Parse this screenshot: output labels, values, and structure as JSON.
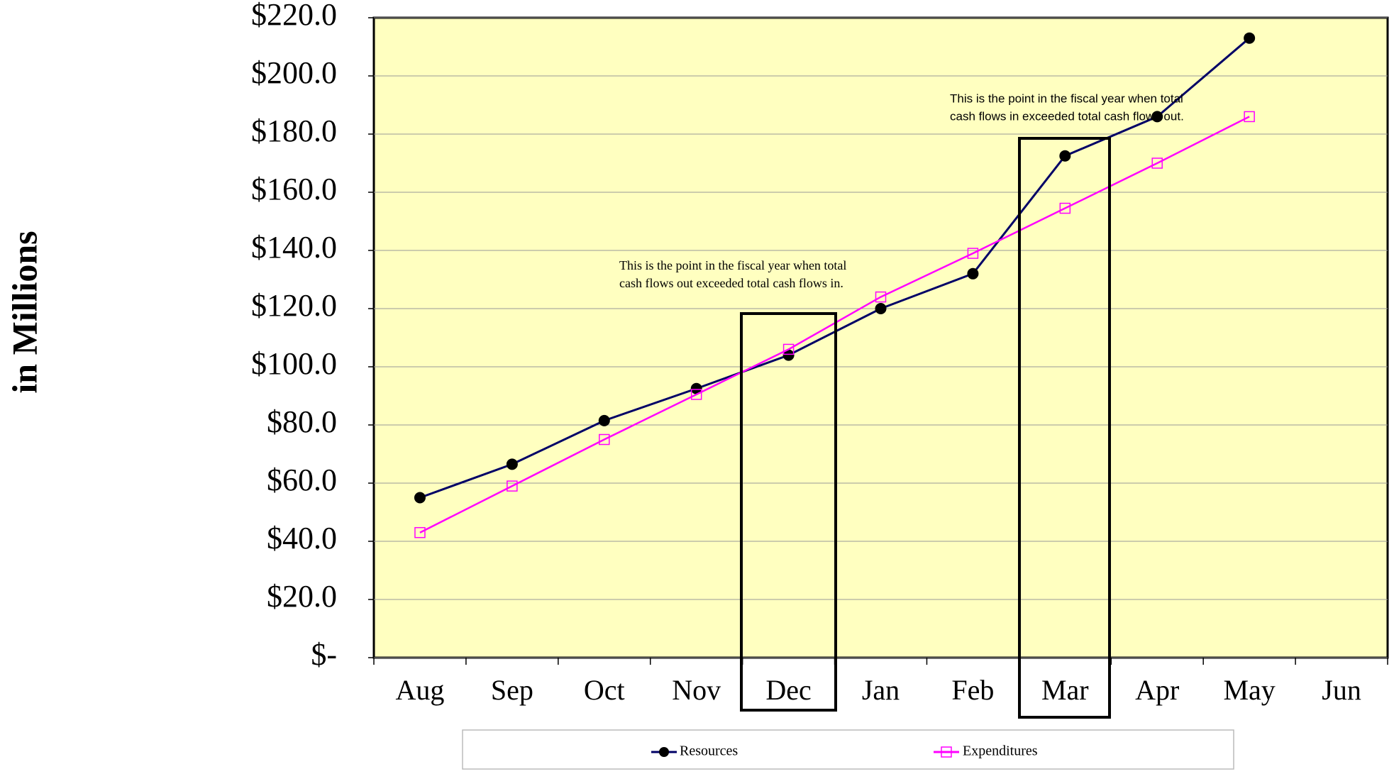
{
  "chart_data": {
    "type": "line",
    "y_label": "in Millions",
    "categories": [
      "Aug",
      "Sep",
      "Oct",
      "Nov",
      "Dec",
      "Jan",
      "Feb",
      "Mar",
      "Apr",
      "May",
      "Jun"
    ],
    "series": [
      {
        "name": "Resources",
        "color": "#000066",
        "marker": "circle",
        "values": [
          55,
          66.5,
          81.5,
          92.5,
          104,
          120,
          132,
          172.5,
          186,
          213,
          null
        ]
      },
      {
        "name": "Expenditures",
        "color": "#ff00ff",
        "marker": "square",
        "values": [
          43,
          59,
          75,
          90.5,
          106,
          124,
          139,
          154.5,
          170,
          186,
          null
        ]
      }
    ],
    "ylim": [
      0,
      220
    ],
    "yticks": [
      {
        "value": 0,
        "label": "$-"
      },
      {
        "value": 20,
        "label": "$20.0"
      },
      {
        "value": 40,
        "label": "$40.0"
      },
      {
        "value": 60,
        "label": "$60.0"
      },
      {
        "value": 80,
        "label": "$80.0"
      },
      {
        "value": 100,
        "label": "$100.0"
      },
      {
        "value": 120,
        "label": "$120.0"
      },
      {
        "value": 140,
        "label": "$140.0"
      },
      {
        "value": 160,
        "label": "$160.0"
      },
      {
        "value": 180,
        "label": "$180.0"
      },
      {
        "value": 200,
        "label": "$200.0"
      },
      {
        "value": 220,
        "label": "$220.0"
      }
    ],
    "grid": true,
    "plot_background": "#ffffc0",
    "annotations": [
      [
        "This is the point in the fiscal year when total",
        "cash flows out exceeded total cash flows in."
      ],
      [
        "This is the point in the fiscal year when total",
        "cash flows in exceeded total cash flows out."
      ]
    ]
  }
}
